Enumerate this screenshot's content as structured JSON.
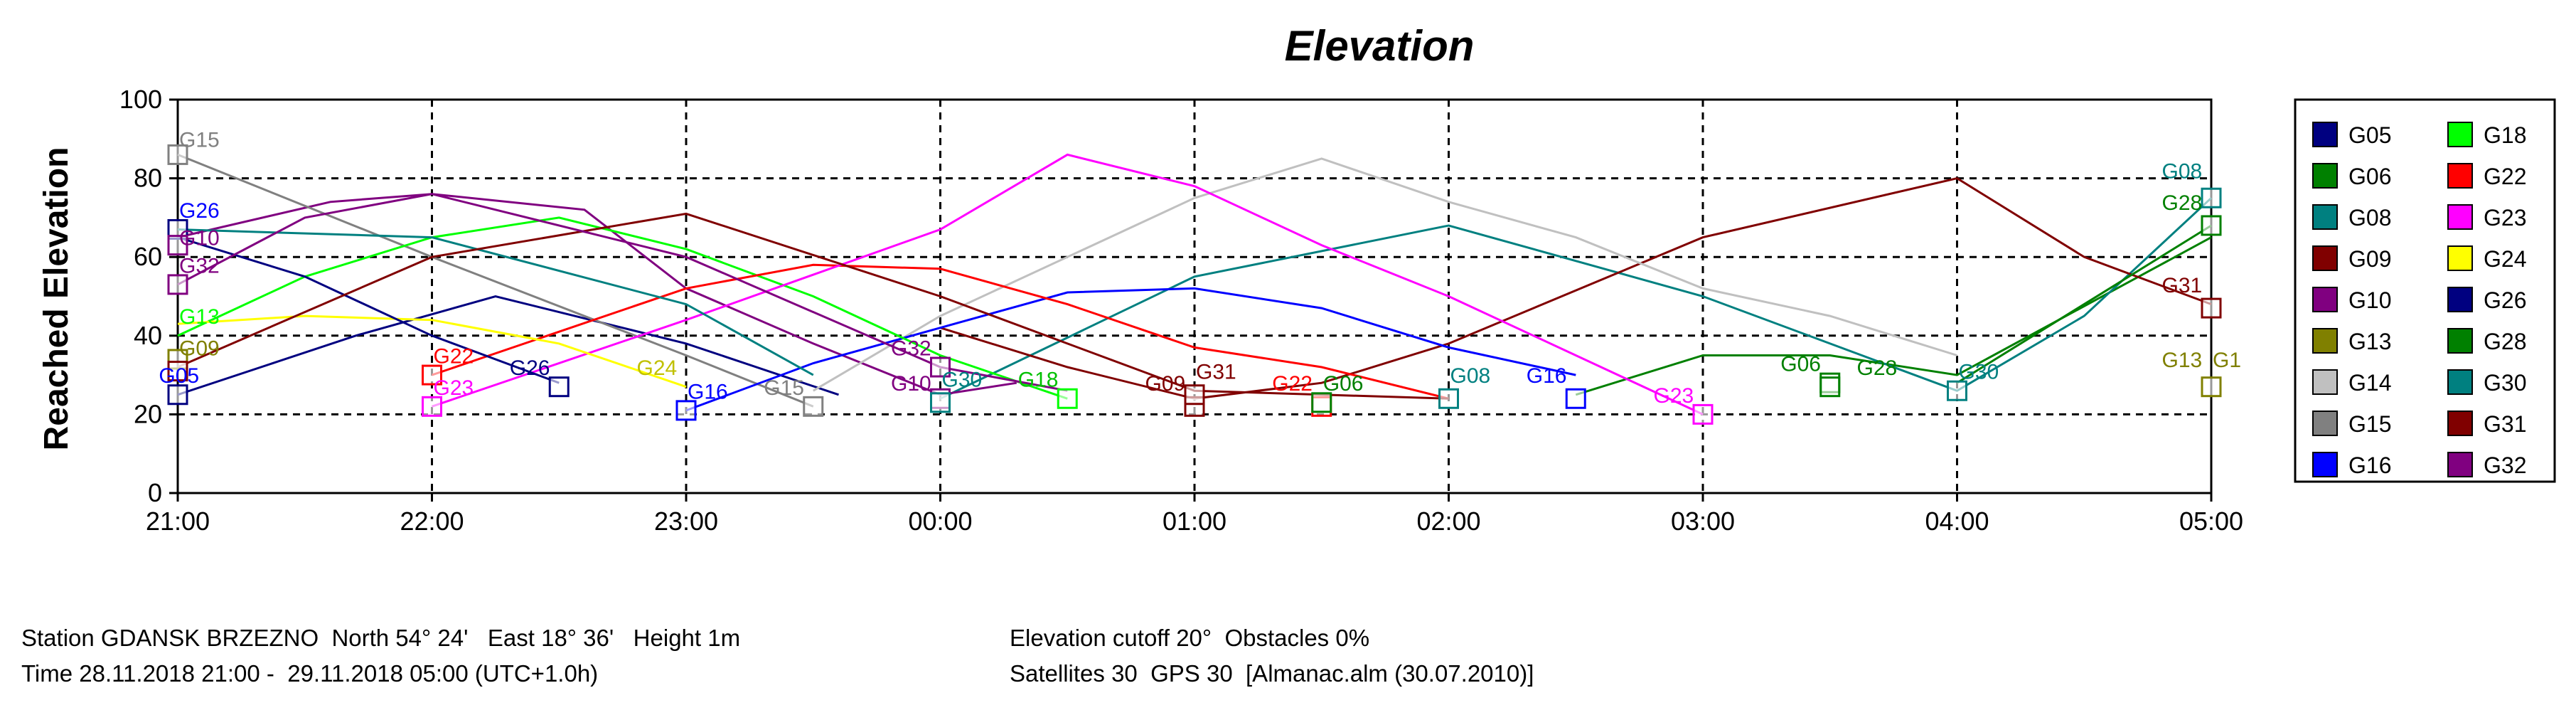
{
  "chart_data": {
    "type": "line",
    "title": "Elevation",
    "ylabel": "Reached Elevation",
    "xlabel": "",
    "ylim": [
      0,
      100
    ],
    "yticks": [
      0,
      20,
      40,
      60,
      80,
      100
    ],
    "xlim": [
      0,
      8
    ],
    "xticks": [
      {
        "x": 0,
        "label": "21:00"
      },
      {
        "x": 1,
        "label": "22:00"
      },
      {
        "x": 2,
        "label": "23:00"
      },
      {
        "x": 3,
        "label": "00:00"
      },
      {
        "x": 4,
        "label": "01:00"
      },
      {
        "x": 5,
        "label": "02:00"
      },
      {
        "x": 6,
        "label": "03:00"
      },
      {
        "x": 7,
        "label": "04:00"
      },
      {
        "x": 8,
        "label": "05:00"
      }
    ],
    "grid": true,
    "legend_position": "right",
    "series": [
      {
        "name": "G05",
        "color": "#000080",
        "points": [
          [
            0,
            25
          ],
          [
            0.7,
            40
          ],
          [
            1.25,
            50
          ],
          [
            2,
            38
          ],
          [
            2.6,
            25
          ]
        ]
      },
      {
        "name": "G06",
        "color": "#008000",
        "points": [
          [
            5.5,
            25
          ],
          [
            6,
            35
          ],
          [
            6.5,
            35
          ],
          [
            7,
            30
          ],
          [
            8,
            65
          ]
        ]
      },
      {
        "name": "G08",
        "color": "#008080",
        "points": [
          [
            3,
            24
          ],
          [
            4,
            55
          ],
          [
            5,
            68
          ],
          [
            6,
            50
          ],
          [
            7,
            26
          ],
          [
            7.5,
            45
          ],
          [
            8,
            75
          ]
        ]
      },
      {
        "name": "G09",
        "color": "#800000",
        "points": [
          [
            3,
            42
          ],
          [
            3.5,
            32
          ],
          [
            4,
            24
          ],
          [
            4.5,
            28
          ],
          [
            5,
            38
          ],
          [
            6,
            65
          ],
          [
            7,
            80
          ],
          [
            7.5,
            60
          ],
          [
            8,
            48
          ]
        ]
      },
      {
        "name": "G10",
        "color": "#800080",
        "points": [
          [
            0,
            65
          ],
          [
            0.6,
            74
          ],
          [
            1,
            76
          ],
          [
            1.6,
            72
          ],
          [
            2,
            52
          ],
          [
            2.5,
            38
          ],
          [
            3,
            25
          ],
          [
            3.3,
            28
          ]
        ]
      },
      {
        "name": "G13",
        "color": "#808000",
        "points": [
          [
            0,
            34
          ]
        ]
      },
      {
        "name": "G14",
        "color": "#c0c0c0",
        "points": [
          [
            2.5,
            26
          ],
          [
            3,
            45
          ],
          [
            3.5,
            60
          ],
          [
            4,
            75
          ],
          [
            4.5,
            85
          ],
          [
            5,
            74
          ],
          [
            5.5,
            65
          ],
          [
            6,
            52
          ],
          [
            6.5,
            45
          ],
          [
            7,
            35
          ]
        ]
      },
      {
        "name": "G15",
        "color": "#808080",
        "points": [
          [
            0,
            86
          ],
          [
            1,
            60
          ],
          [
            2,
            35
          ],
          [
            2.5,
            22
          ]
        ]
      },
      {
        "name": "G16",
        "color": "#0000ff",
        "points": [
          [
            2,
            21
          ],
          [
            2.5,
            33
          ],
          [
            3,
            42
          ],
          [
            3.5,
            51
          ],
          [
            4,
            52
          ],
          [
            4.5,
            47
          ],
          [
            5,
            37
          ],
          [
            5.5,
            30
          ]
        ]
      },
      {
        "name": "G18",
        "color": "#00ff00",
        "points": [
          [
            0,
            40
          ],
          [
            0.5,
            55
          ],
          [
            1,
            65
          ],
          [
            1.5,
            70
          ],
          [
            2,
            62
          ],
          [
            2.5,
            50
          ],
          [
            3,
            35
          ],
          [
            3.5,
            24
          ]
        ]
      },
      {
        "name": "G22",
        "color": "#ff0000",
        "points": [
          [
            1,
            30
          ],
          [
            2,
            52
          ],
          [
            2.5,
            58
          ],
          [
            3,
            57
          ],
          [
            3.5,
            48
          ],
          [
            4,
            37
          ],
          [
            4.5,
            32
          ],
          [
            5,
            24
          ]
        ]
      },
      {
        "name": "G23",
        "color": "#ff00ff",
        "points": [
          [
            1,
            22
          ],
          [
            2,
            44
          ],
          [
            3,
            67
          ],
          [
            3.5,
            86
          ],
          [
            4,
            78
          ],
          [
            4.5,
            63
          ],
          [
            5,
            50
          ],
          [
            5.5,
            35
          ],
          [
            6,
            20
          ]
        ]
      },
      {
        "name": "G24",
        "color": "#ffff00",
        "points": [
          [
            0,
            43
          ],
          [
            0.5,
            45
          ],
          [
            1,
            44
          ],
          [
            1.5,
            38
          ],
          [
            2,
            27
          ]
        ]
      },
      {
        "name": "G26",
        "color": "#000080",
        "points": [
          [
            0,
            65
          ],
          [
            0.5,
            55
          ],
          [
            1,
            40
          ],
          [
            1.5,
            28
          ]
        ]
      },
      {
        "name": "G28",
        "color": "#008000",
        "points": [
          [
            7,
            28
          ],
          [
            8,
            68
          ]
        ]
      },
      {
        "name": "G30",
        "color": "#008080",
        "points": [
          [
            0,
            67
          ],
          [
            1,
            65
          ],
          [
            2,
            48
          ],
          [
            2.5,
            30
          ]
        ]
      },
      {
        "name": "G31",
        "color": "#800000",
        "points": [
          [
            0,
            32
          ],
          [
            1,
            60
          ],
          [
            2,
            71
          ],
          [
            3,
            50
          ],
          [
            4,
            26
          ],
          [
            5,
            24
          ]
        ]
      },
      {
        "name": "G32",
        "color": "#800080",
        "points": [
          [
            0,
            53
          ],
          [
            0.5,
            70
          ],
          [
            1,
            76
          ],
          [
            2,
            60
          ],
          [
            3,
            32
          ],
          [
            3.5,
            26
          ]
        ]
      }
    ],
    "markers": [
      {
        "series": "G15",
        "x": 0,
        "y": 86
      },
      {
        "series": "G26",
        "x": 0,
        "y": 67
      },
      {
        "series": "G10",
        "x": 0,
        "y": 63
      },
      {
        "series": "G32",
        "x": 0,
        "y": 53
      },
      {
        "series": "G13",
        "x": 0,
        "y": 34
      },
      {
        "series": "G09",
        "x": 0,
        "y": 31
      },
      {
        "series": "G05",
        "x": 0,
        "y": 25
      },
      {
        "series": "G22",
        "x": 1,
        "y": 30
      },
      {
        "series": "G23",
        "x": 1,
        "y": 22
      },
      {
        "series": "G26",
        "x": 1.5,
        "y": 27
      },
      {
        "series": "G16",
        "x": 2,
        "y": 21
      },
      {
        "series": "G15",
        "x": 2.5,
        "y": 22
      },
      {
        "series": "G10",
        "x": 3,
        "y": 24
      },
      {
        "series": "G30",
        "x": 3,
        "y": 23
      },
      {
        "series": "G32",
        "x": 3,
        "y": 32
      },
      {
        "series": "G18",
        "x": 3.5,
        "y": 24
      },
      {
        "series": "G09",
        "x": 4,
        "y": 22
      },
      {
        "series": "G31",
        "x": 4,
        "y": 25
      },
      {
        "series": "G22",
        "x": 4.5,
        "y": 22
      },
      {
        "series": "G06",
        "x": 4.5,
        "y": 23
      },
      {
        "series": "G08",
        "x": 5,
        "y": 24
      },
      {
        "series": "G16",
        "x": 5.5,
        "y": 24
      },
      {
        "series": "G23",
        "x": 6,
        "y": 20
      },
      {
        "series": "G06",
        "x": 6.5,
        "y": 28
      },
      {
        "series": "G28",
        "x": 6.5,
        "y": 27
      },
      {
        "series": "G30",
        "x": 7,
        "y": 26
      },
      {
        "series": "G08",
        "x": 8,
        "y": 75
      },
      {
        "series": "G28",
        "x": 8,
        "y": 68
      },
      {
        "series": "G31",
        "x": 8,
        "y": 47
      },
      {
        "series": "G13",
        "x": 8,
        "y": 27
      }
    ],
    "annotations": [
      {
        "text": "G15",
        "x": 0.0,
        "y": 88,
        "color": "#808080"
      },
      {
        "text": "G26",
        "x": 0.0,
        "y": 70,
        "color": "#0000ff"
      },
      {
        "text": "G10",
        "x": 0.0,
        "y": 63,
        "color": "#800080"
      },
      {
        "text": "G32",
        "x": 0.0,
        "y": 56,
        "color": "#800080"
      },
      {
        "text": "G13",
        "x": 0.0,
        "y": 43,
        "color": "#00ff00"
      },
      {
        "text": "G09",
        "x": 0.0,
        "y": 35,
        "color": "#808000"
      },
      {
        "text": "G05",
        "x": -0.08,
        "y": 28,
        "color": "#0000ff"
      },
      {
        "text": "G22",
        "x": 1.0,
        "y": 33,
        "color": "#ff0000"
      },
      {
        "text": "G23",
        "x": 1.0,
        "y": 25,
        "color": "#ff00ff"
      },
      {
        "text": "G26",
        "x": 1.3,
        "y": 30,
        "color": "#000080"
      },
      {
        "text": "G24",
        "x": 1.8,
        "y": 30,
        "color": "#c0c000"
      },
      {
        "text": "G16",
        "x": 2.0,
        "y": 24,
        "color": "#0000ff"
      },
      {
        "text": "G15",
        "x": 2.3,
        "y": 25,
        "color": "#808080"
      },
      {
        "text": "G32",
        "x": 2.8,
        "y": 35,
        "color": "#800080"
      },
      {
        "text": "G10",
        "x": 2.8,
        "y": 26,
        "color": "#800080"
      },
      {
        "text": "G30",
        "x": 3.0,
        "y": 27,
        "color": "#008080"
      },
      {
        "text": "G18",
        "x": 3.3,
        "y": 27,
        "color": "#00c000"
      },
      {
        "text": "G09",
        "x": 3.8,
        "y": 26,
        "color": "#800000"
      },
      {
        "text": "G31",
        "x": 4.0,
        "y": 29,
        "color": "#800000"
      },
      {
        "text": "G22",
        "x": 4.3,
        "y": 26,
        "color": "#ff0000"
      },
      {
        "text": "G06",
        "x": 4.5,
        "y": 26,
        "color": "#008000"
      },
      {
        "text": "G08",
        "x": 5.0,
        "y": 28,
        "color": "#008080"
      },
      {
        "text": "G16",
        "x": 5.3,
        "y": 28,
        "color": "#0000ff"
      },
      {
        "text": "G23",
        "x": 5.8,
        "y": 23,
        "color": "#ff00ff"
      },
      {
        "text": "G06",
        "x": 6.3,
        "y": 31,
        "color": "#008000"
      },
      {
        "text": "G28",
        "x": 6.6,
        "y": 30,
        "color": "#008000"
      },
      {
        "text": "G30",
        "x": 7.0,
        "y": 29,
        "color": "#008080"
      },
      {
        "text": "G08",
        "x": 7.8,
        "y": 80,
        "color": "#008080"
      },
      {
        "text": "G28",
        "x": 7.8,
        "y": 72,
        "color": "#008000"
      },
      {
        "text": "G31",
        "x": 7.8,
        "y": 51,
        "color": "#800000"
      },
      {
        "text": "G13",
        "x": 7.8,
        "y": 32,
        "color": "#808000"
      },
      {
        "text": "G1",
        "x": 8.0,
        "y": 32,
        "color": "#808000"
      }
    ]
  },
  "legend": {
    "items": [
      {
        "label": "G05",
        "color": "#000080"
      },
      {
        "label": "G18",
        "color": "#00ff00"
      },
      {
        "label": "G06",
        "color": "#008000"
      },
      {
        "label": "G22",
        "color": "#ff0000"
      },
      {
        "label": "G08",
        "color": "#008080"
      },
      {
        "label": "G23",
        "color": "#ff00ff"
      },
      {
        "label": "G09",
        "color": "#800000"
      },
      {
        "label": "G24",
        "color": "#ffff00"
      },
      {
        "label": "G10",
        "color": "#800080"
      },
      {
        "label": "G26",
        "color": "#000080"
      },
      {
        "label": "G13",
        "color": "#808000"
      },
      {
        "label": "G28",
        "color": "#008000"
      },
      {
        "label": "G14",
        "color": "#c0c0c0"
      },
      {
        "label": "G30",
        "color": "#008080"
      },
      {
        "label": "G15",
        "color": "#808080"
      },
      {
        "label": "G31",
        "color": "#800000"
      },
      {
        "label": "G16",
        "color": "#0000ff"
      },
      {
        "label": "G32",
        "color": "#800080"
      }
    ]
  },
  "info": {
    "line1_left": "Station GDANSK BRZEZNO  North 54° 24'   East 18° 36'   Height 1m",
    "line1_right": "Elevation cutoff 20°  Obstacles 0%",
    "line2_left": "Time 28.11.2018 21:00 -  29.11.2018 05:00 (UTC+1.0h)",
    "line2_right": "Satellites 30  GPS 30  [Almanac.alm (30.07.2010)]"
  }
}
